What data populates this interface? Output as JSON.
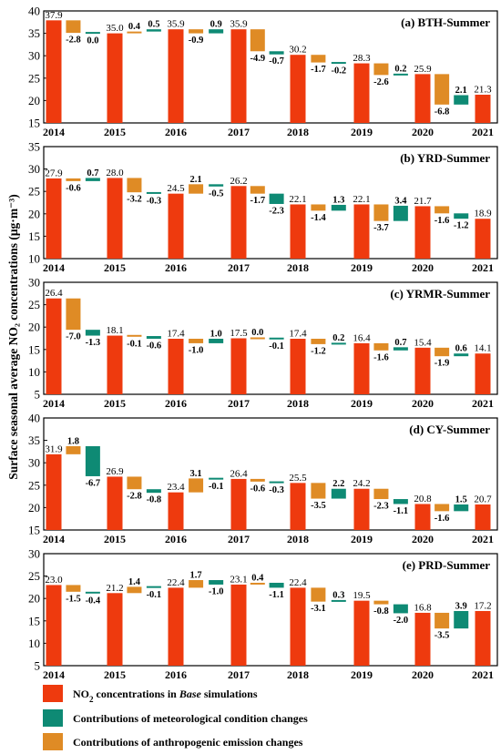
{
  "chart_data": {
    "type": "bar",
    "subtype": "waterfall",
    "ylabel": "Surface seasonal average NO₂ concentrations (μg·m⁻³)",
    "legend": {
      "placement": "bottom",
      "items": [
        {
          "key": "base",
          "label_prefix": "NO",
          "label_sub": "2",
          "label_mid": " concentrations in ",
          "label_italic": "Base",
          "label_suffix": " simulations",
          "color": "#ee3a0e"
        },
        {
          "key": "met",
          "label": "Contributions of meteorological condition changes",
          "color": "#0e8a74"
        },
        {
          "key": "emis",
          "label": "Contributions of anthropogenic emission changes",
          "color": "#df8b25"
        }
      ]
    },
    "colors": {
      "base": "#ee3a0e",
      "met": "#0e8a74",
      "emis": "#df8b25"
    },
    "years": [
      "2014",
      "2015",
      "2016",
      "2017",
      "2018",
      "2019",
      "2020",
      "2021"
    ],
    "panels": [
      {
        "title": "(a) BTH-Summer",
        "ylim": [
          15,
          40
        ],
        "yticks": [
          15,
          20,
          25,
          30,
          35,
          40
        ],
        "base": [
          37.9,
          35.0,
          35.9,
          35.9,
          30.2,
          28.3,
          25.9,
          21.3
        ],
        "base_labels": [
          "37.9",
          "35.0",
          "35.9",
          "35.9",
          "30.2",
          "28.3",
          "25.9",
          "21.3"
        ],
        "emis": [
          -2.8,
          0.4,
          -0.9,
          -4.9,
          -1.7,
          -2.6,
          -6.8
        ],
        "emis_labels": [
          "-2.8",
          "0.4",
          "-0.9",
          "-4.9",
          "-1.7",
          "-2.6",
          "-6.8"
        ],
        "met": [
          0.0,
          0.5,
          0.9,
          -0.7,
          -0.2,
          0.2,
          2.1
        ],
        "met_labels": [
          "0.0",
          "0.5",
          "0.9",
          "-0.7",
          "-0.2",
          "0.2",
          "2.1"
        ]
      },
      {
        "title": "(b) YRD-Summer",
        "ylim": [
          10,
          35
        ],
        "yticks": [
          10,
          15,
          20,
          25,
          30,
          35
        ],
        "base": [
          27.9,
          28.0,
          24.5,
          26.2,
          22.1,
          22.1,
          21.7,
          18.9
        ],
        "base_labels": [
          "27.9",
          "28.0",
          "24.5",
          "26.2",
          "22.1",
          "22.1",
          "21.7",
          "18.9"
        ],
        "emis": [
          -0.6,
          -3.2,
          2.1,
          -1.7,
          -1.4,
          -3.7,
          -1.6
        ],
        "emis_labels": [
          "-0.6",
          "-3.2",
          "2.1",
          "-1.7",
          "-1.4",
          "-3.7",
          "-1.6"
        ],
        "met": [
          0.7,
          -0.3,
          -0.5,
          -2.3,
          1.3,
          3.4,
          -1.2
        ],
        "met_labels": [
          "0.7",
          "-0.3",
          "-0.5",
          "-2.3",
          "1.3",
          "3.4",
          "-1.2"
        ]
      },
      {
        "title": "(c) YRMR-Summer",
        "ylim": [
          5,
          30
        ],
        "yticks": [
          5,
          10,
          15,
          20,
          25,
          30
        ],
        "base": [
          26.4,
          18.1,
          17.4,
          17.5,
          17.4,
          16.4,
          15.4,
          14.1
        ],
        "base_labels": [
          "26.4",
          "18.1",
          "17.4",
          "17.5",
          "17.4",
          "16.4",
          "15.4",
          "14.1"
        ],
        "emis": [
          -7.0,
          -0.1,
          -1.0,
          0.0,
          -1.2,
          -1.6,
          -1.9
        ],
        "emis_labels": [
          "-7.0",
          "-0.1",
          "-1.0",
          "0.0",
          "-1.2",
          "-1.6",
          "-1.9"
        ],
        "met": [
          -1.3,
          -0.6,
          1.0,
          -0.1,
          0.2,
          0.7,
          0.6
        ],
        "met_labels": [
          "-1.3",
          "-0.6",
          "1.0",
          "-0.1",
          "0.2",
          "0.7",
          "0.6"
        ]
      },
      {
        "title": "(d) CY-Summer",
        "ylim": [
          15,
          40
        ],
        "yticks": [
          15,
          20,
          25,
          30,
          35,
          40
        ],
        "base": [
          31.9,
          26.9,
          23.4,
          26.4,
          25.5,
          24.2,
          20.8,
          20.7
        ],
        "base_labels": [
          "31.9",
          "26.9",
          "23.4",
          "26.4",
          "25.5",
          "24.2",
          "20.8",
          "20.7"
        ],
        "emis": [
          1.8,
          -2.8,
          3.1,
          -0.6,
          -3.5,
          -2.3,
          -1.6
        ],
        "emis_labels": [
          "1.8",
          "-2.8",
          "3.1",
          "-0.6",
          "-3.5",
          "-2.3",
          "-1.6"
        ],
        "met": [
          -6.7,
          -0.8,
          -0.1,
          -0.3,
          2.2,
          -1.1,
          1.5
        ],
        "met_labels": [
          "-6.7",
          "-0.8",
          "-0.1",
          "-0.3",
          "2.2",
          "-1.1",
          "1.5"
        ]
      },
      {
        "title": "(e) PRD-Summer",
        "ylim": [
          5,
          30
        ],
        "yticks": [
          5,
          10,
          15,
          20,
          25,
          30
        ],
        "base": [
          23.0,
          21.2,
          22.4,
          23.1,
          22.4,
          19.5,
          16.8,
          17.2
        ],
        "base_labels": [
          "23.0",
          "21.2",
          "22.4",
          "23.1",
          "22.4",
          "19.5",
          "16.8",
          "17.2"
        ],
        "emis": [
          -1.5,
          1.4,
          1.7,
          0.4,
          -3.1,
          -0.8,
          -3.5
        ],
        "emis_labels": [
          "-1.5",
          "1.4",
          "1.7",
          "0.4",
          "-3.1",
          "-0.8",
          "-3.5"
        ],
        "met": [
          -0.4,
          -0.1,
          -1.0,
          -1.1,
          0.3,
          -2.0,
          3.9
        ],
        "met_labels": [
          "-0.4",
          "-0.1",
          "-1.0",
          "-1.1",
          "0.3",
          "-2.0",
          "3.9"
        ]
      }
    ]
  }
}
